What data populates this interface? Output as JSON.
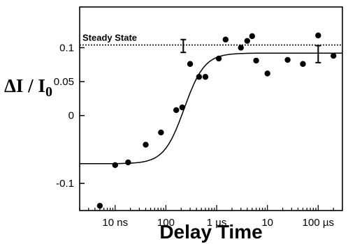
{
  "chart_data": {
    "type": "scatter",
    "title": "",
    "xlabel": "Delay Time",
    "ylabel": "ΔI / I0",
    "x_scale": "log",
    "x_unit": "s",
    "xlim": [
      2e-09,
      0.0003
    ],
    "ylim": [
      -0.14,
      0.16
    ],
    "x_ticks": [
      {
        "value": 1e-08,
        "label": "10 ns"
      },
      {
        "value": 1e-07,
        "label": "100"
      },
      {
        "value": 1e-06,
        "label": "1 µs"
      },
      {
        "value": 1e-05,
        "label": "10"
      },
      {
        "value": 0.0001,
        "label": "100 µs"
      }
    ],
    "y_ticks": [
      {
        "value": 0.1,
        "label": "0.1"
      },
      {
        "value": 0.05,
        "label": "0.05"
      },
      {
        "value": 0,
        "label": "0"
      },
      {
        "value": -0.1,
        "label": "-0.1"
      }
    ],
    "grid": false,
    "points": [
      {
        "x": 5e-09,
        "y": -0.133
      },
      {
        "x": 1e-08,
        "y": -0.073
      },
      {
        "x": 1.8e-08,
        "y": -0.069
      },
      {
        "x": 4e-08,
        "y": -0.043
      },
      {
        "x": 8e-08,
        "y": -0.025
      },
      {
        "x": 1.6e-07,
        "y": 0.008
      },
      {
        "x": 2.1e-07,
        "y": 0.012
      },
      {
        "x": 3e-07,
        "y": 0.076
      },
      {
        "x": 4.5e-07,
        "y": 0.057
      },
      {
        "x": 6e-07,
        "y": 0.057
      },
      {
        "x": 1.1e-06,
        "y": 0.084
      },
      {
        "x": 1.5e-06,
        "y": 0.112
      },
      {
        "x": 3e-06,
        "y": 0.1
      },
      {
        "x": 4e-06,
        "y": 0.11
      },
      {
        "x": 5e-06,
        "y": 0.117
      },
      {
        "x": 6e-06,
        "y": 0.081
      },
      {
        "x": 1e-05,
        "y": 0.062
      },
      {
        "x": 2.5e-05,
        "y": 0.082
      },
      {
        "x": 5e-05,
        "y": 0.076
      },
      {
        "x": 0.0001,
        "y": 0.118
      },
      {
        "x": 0.0002,
        "y": 0.088
      }
    ],
    "fit_curve": {
      "type": "sigmoid-log",
      "low": -0.071,
      "high": 0.092,
      "x_mid": 2.3e-07,
      "width_decades": 0.2
    },
    "steady_state": {
      "label": "Steady State",
      "y": 0.104
    },
    "error_bars": [
      {
        "x": 2.2e-07,
        "y": 0.102,
        "low": 0.093,
        "high": 0.112
      },
      {
        "x": 0.0001,
        "y": 0.09,
        "low": 0.078,
        "high": 0.103
      }
    ]
  }
}
